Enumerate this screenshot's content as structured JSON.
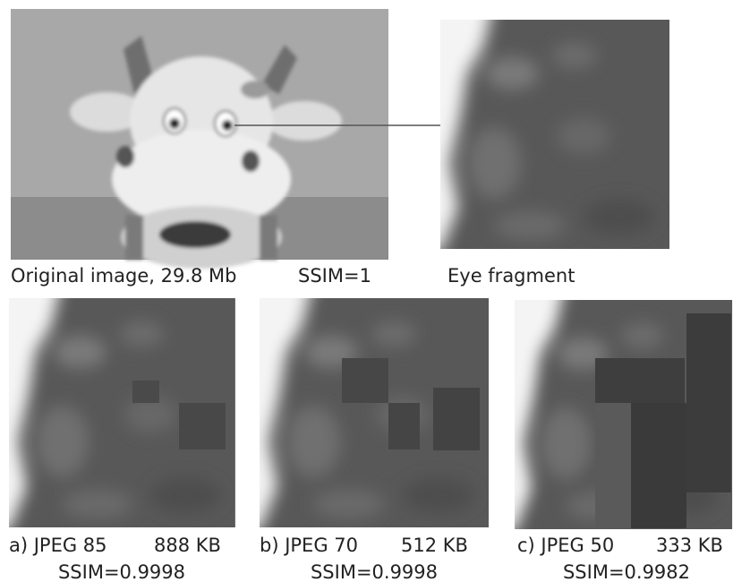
{
  "original": {
    "caption": "Original image, 29.8 Mb",
    "ssim": "SSIM=1"
  },
  "fragment": {
    "caption": "Eye fragment"
  },
  "panels": [
    {
      "label": "a) JPEG 85",
      "size": "888 KB",
      "ssim": "SSIM=0.9998"
    },
    {
      "label": "b) JPEG 70",
      "size": "512 KB",
      "ssim": "SSIM=0.9998"
    },
    {
      "label": "c) JPEG 50",
      "size": "333 KB",
      "ssim": "SSIM=0.9982"
    }
  ]
}
